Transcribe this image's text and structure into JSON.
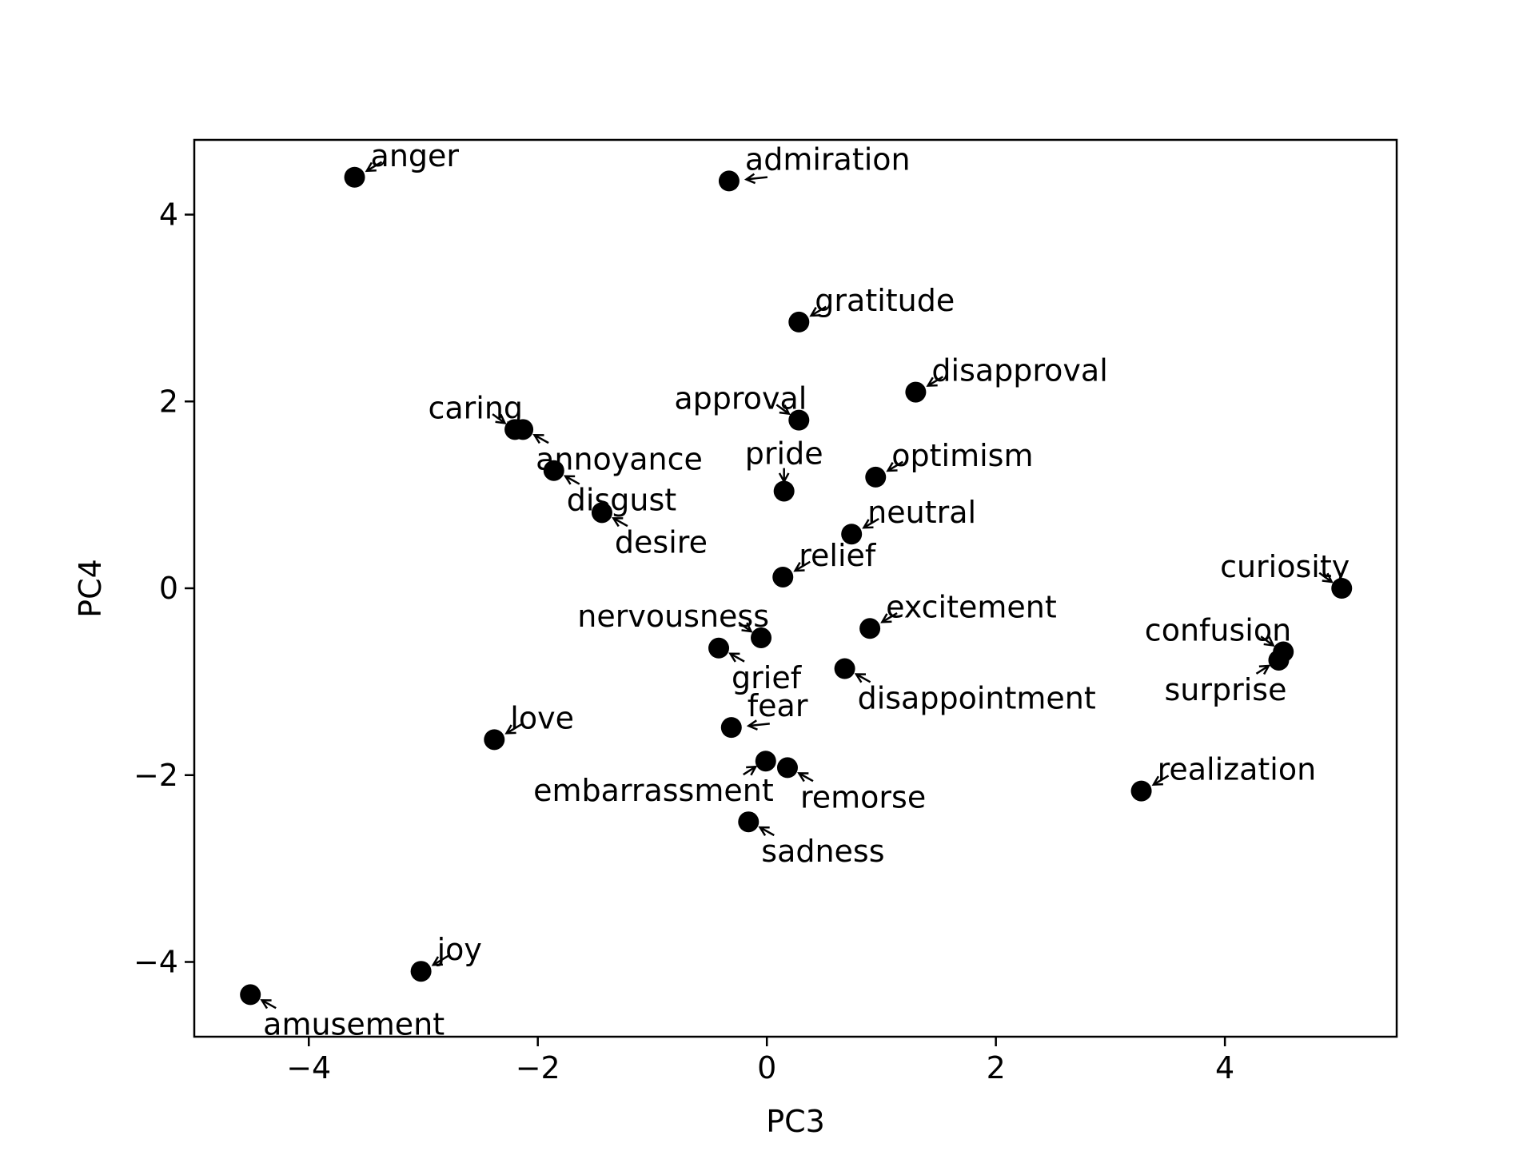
{
  "chart_data": {
    "type": "scatter",
    "title": "",
    "xlabel": "PC3",
    "ylabel": "PC4",
    "xlim": [
      -5.0,
      5.5
    ],
    "ylim": [
      -4.8,
      4.8
    ],
    "xticks": [
      -4,
      -2,
      0,
      2,
      4
    ],
    "yticks": [
      -4,
      -2,
      0,
      2,
      4
    ],
    "xtick_labels": [
      "−4",
      "−2",
      "0",
      "2",
      "4"
    ],
    "ytick_labels": [
      "−4",
      "−2",
      "0",
      "2",
      "4"
    ],
    "grid": false,
    "marker_color": "#000000",
    "points": [
      {
        "label": "anger",
        "x": -3.6,
        "y": 4.4,
        "label_dir": "ne"
      },
      {
        "label": "admiration",
        "x": -0.33,
        "y": 4.36,
        "label_dir": "e"
      },
      {
        "label": "gratitude",
        "x": 0.28,
        "y": 2.85,
        "label_dir": "ne"
      },
      {
        "label": "disapproval",
        "x": 1.3,
        "y": 2.1,
        "label_dir": "ne"
      },
      {
        "label": "caring",
        "x": -2.2,
        "y": 1.7,
        "label_dir": "nw"
      },
      {
        "label": "annoyance",
        "x": -2.13,
        "y": 1.7,
        "label_dir": "se"
      },
      {
        "label": "approval",
        "x": 0.28,
        "y": 1.8,
        "label_dir": "nw"
      },
      {
        "label": "disgust",
        "x": -1.86,
        "y": 1.26,
        "label_dir": "se"
      },
      {
        "label": "optimism",
        "x": 0.95,
        "y": 1.19,
        "label_dir": "ne"
      },
      {
        "label": "pride",
        "x": 0.15,
        "y": 1.04,
        "label_dir": "n"
      },
      {
        "label": "desire",
        "x": -1.44,
        "y": 0.81,
        "label_dir": "se"
      },
      {
        "label": "neutral",
        "x": 0.74,
        "y": 0.58,
        "label_dir": "ne"
      },
      {
        "label": "relief",
        "x": 0.14,
        "y": 0.12,
        "label_dir": "ne"
      },
      {
        "label": "curiosity",
        "x": 5.02,
        "y": 0.0,
        "label_dir": "nw"
      },
      {
        "label": "excitement",
        "x": 0.9,
        "y": -0.43,
        "label_dir": "ne"
      },
      {
        "label": "nervousness",
        "x": -0.05,
        "y": -0.53,
        "label_dir": "nw"
      },
      {
        "label": "grief",
        "x": -0.42,
        "y": -0.64,
        "label_dir": "se"
      },
      {
        "label": "confusion",
        "x": 4.51,
        "y": -0.68,
        "label_dir": "nw"
      },
      {
        "label": "surprise",
        "x": 4.47,
        "y": -0.77,
        "label_dir": "sw"
      },
      {
        "label": "disappointment",
        "x": 0.68,
        "y": -0.86,
        "label_dir": "se"
      },
      {
        "label": "love",
        "x": -2.38,
        "y": -1.62,
        "label_dir": "ne"
      },
      {
        "label": "fear",
        "x": -0.31,
        "y": -1.49,
        "label_dir": "e"
      },
      {
        "label": "embarrassment",
        "x": -0.01,
        "y": -1.85,
        "label_dir": "sw"
      },
      {
        "label": "remorse",
        "x": 0.18,
        "y": -1.92,
        "label_dir": "se"
      },
      {
        "label": "realization",
        "x": 3.27,
        "y": -2.17,
        "label_dir": "ne"
      },
      {
        "label": "sadness",
        "x": -0.16,
        "y": -2.5,
        "label_dir": "se"
      },
      {
        "label": "joy",
        "x": -3.02,
        "y": -4.1,
        "label_dir": "ne"
      },
      {
        "label": "amusement",
        "x": -4.51,
        "y": -4.35,
        "label_dir": "se"
      }
    ]
  }
}
